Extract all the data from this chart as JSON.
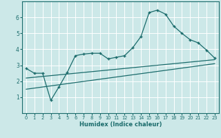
{
  "bg_color": "#cce8e8",
  "grid_color": "#b8d8d8",
  "line_color": "#1a6b6b",
  "xlabel": "Humidex (Indice chaleur)",
  "xlim": [
    -0.5,
    23.5
  ],
  "ylim": [
    0,
    7
  ],
  "yticks": [
    1,
    2,
    3,
    4,
    5,
    6
  ],
  "xticks": [
    0,
    1,
    2,
    3,
    4,
    5,
    6,
    7,
    8,
    9,
    10,
    11,
    12,
    13,
    14,
    15,
    16,
    17,
    18,
    19,
    20,
    21,
    22,
    23
  ],
  "line1_x": [
    0,
    1,
    2,
    3,
    4,
    5,
    6,
    7,
    8,
    9,
    10,
    11,
    12,
    13,
    14,
    15,
    16,
    17,
    18,
    19,
    20,
    21,
    22,
    23
  ],
  "line1_y": [
    2.8,
    2.5,
    2.5,
    0.8,
    1.65,
    2.55,
    3.6,
    3.7,
    3.75,
    3.75,
    3.4,
    3.5,
    3.6,
    4.1,
    4.8,
    6.3,
    6.45,
    6.2,
    5.45,
    5.0,
    4.6,
    4.4,
    3.95,
    3.45
  ],
  "line2_x": [
    0,
    23
  ],
  "line2_y": [
    2.2,
    3.35
  ],
  "line3_x": [
    0,
    23
  ],
  "line3_y": [
    1.5,
    3.1
  ]
}
